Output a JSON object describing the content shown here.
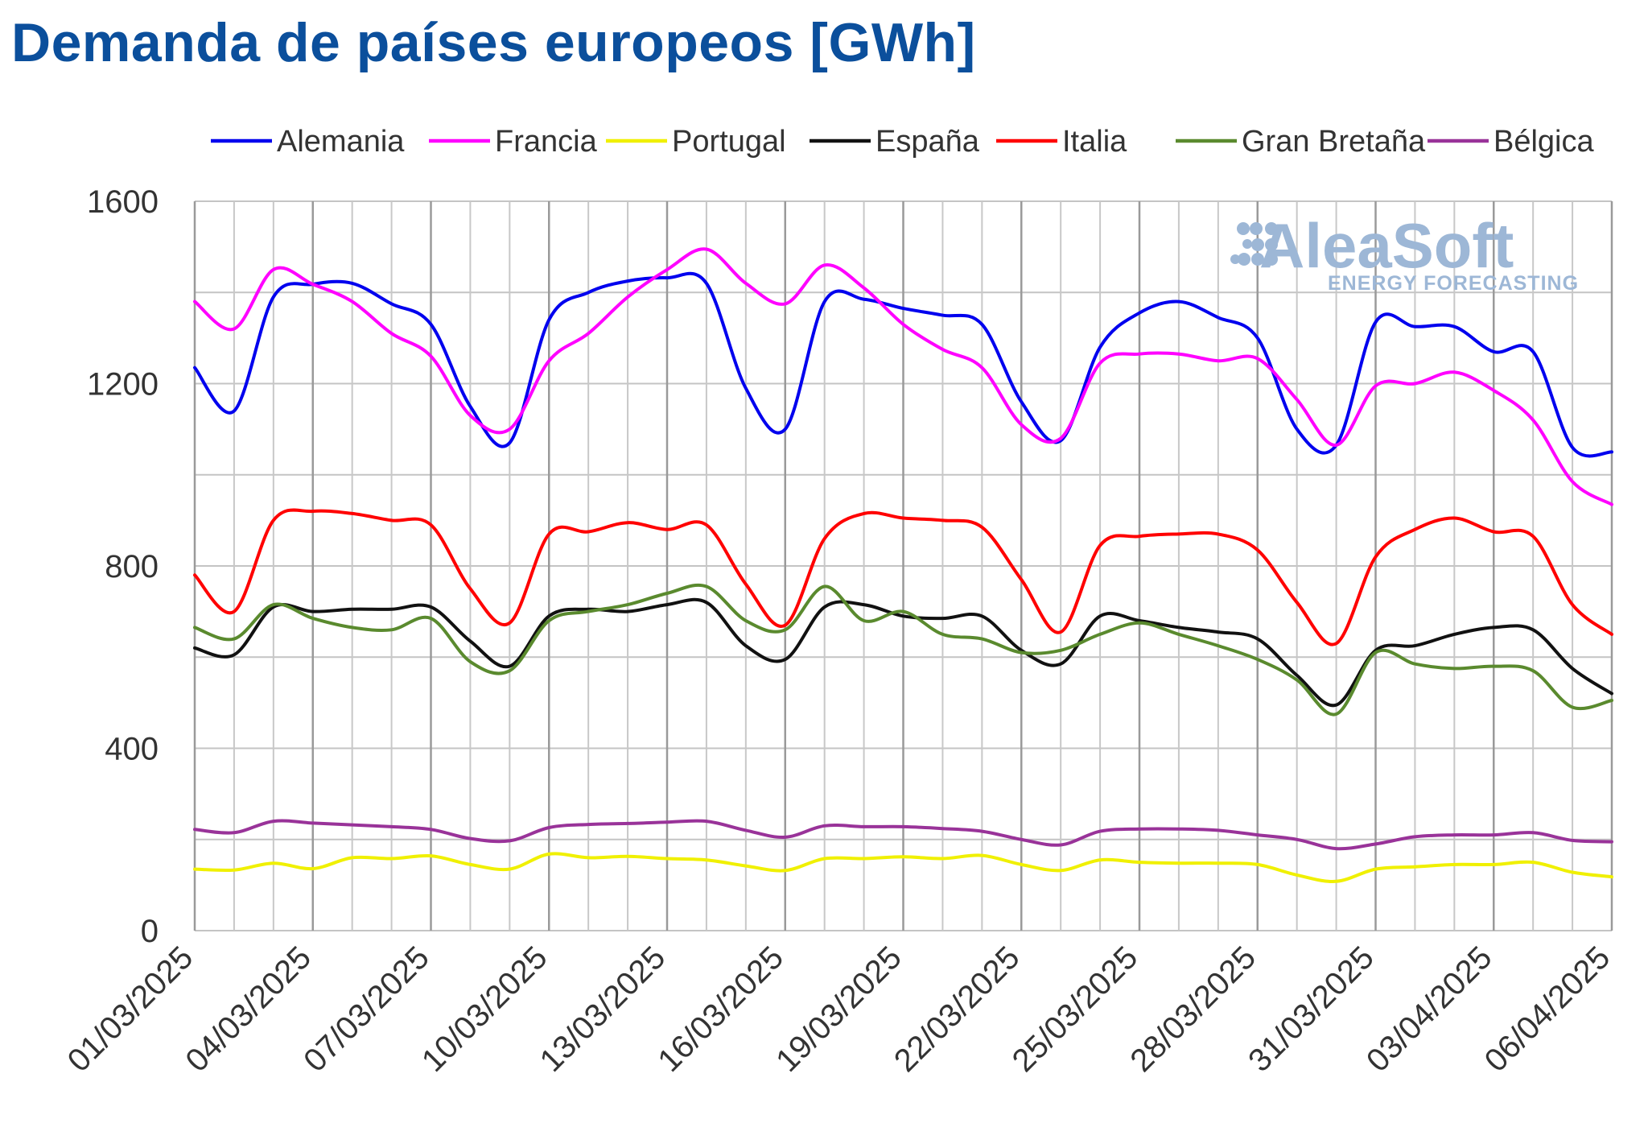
{
  "title": "Demanda de países europeos [GWh]",
  "watermark": {
    "brand": "AleaSoft",
    "tagline": "ENERGY FORECASTING"
  },
  "chart_data": {
    "type": "line",
    "y_ticks": [
      "0",
      "400",
      "800",
      "1200",
      "1600"
    ],
    "ylim": [
      0,
      1600
    ],
    "grid": true,
    "legend_position": "top",
    "x": [
      "01/03/2025",
      "02/03/2025",
      "03/03/2025",
      "04/03/2025",
      "05/03/2025",
      "06/03/2025",
      "07/03/2025",
      "08/03/2025",
      "09/03/2025",
      "10/03/2025",
      "11/03/2025",
      "12/03/2025",
      "13/03/2025",
      "14/03/2025",
      "15/03/2025",
      "16/03/2025",
      "17/03/2025",
      "18/03/2025",
      "19/03/2025",
      "20/03/2025",
      "21/03/2025",
      "22/03/2025",
      "23/03/2025",
      "24/03/2025",
      "25/03/2025",
      "26/03/2025",
      "27/03/2025",
      "28/03/2025",
      "29/03/2025",
      "30/03/2025",
      "31/03/2025",
      "01/04/2025",
      "02/04/2025",
      "03/04/2025",
      "04/04/2025",
      "05/04/2025",
      "06/04/2025"
    ],
    "x_tick_labels": [
      "01/03/2025",
      "04/03/2025",
      "07/03/2025",
      "10/03/2025",
      "13/03/2025",
      "16/03/2025",
      "19/03/2025",
      "22/03/2025",
      "25/03/2025",
      "28/03/2025",
      "31/03/2025",
      "03/04/2025",
      "06/04/2025"
    ],
    "series": [
      {
        "name": "Alemania",
        "color": "#0000ee",
        "values": [
          1235,
          1140,
          1390,
          1418,
          1420,
          1375,
          1330,
          1150,
          1070,
          1340,
          1400,
          1425,
          1432,
          1420,
          1190,
          1100,
          1380,
          1385,
          1365,
          1350,
          1330,
          1160,
          1075,
          1280,
          1355,
          1380,
          1345,
          1300,
          1100,
          1065,
          1335,
          1325,
          1325,
          1270,
          1270,
          1060,
          1050
        ]
      },
      {
        "name": "Francia",
        "color": "#ff00ff",
        "values": [
          1380,
          1320,
          1450,
          1418,
          1380,
          1310,
          1260,
          1130,
          1100,
          1250,
          1310,
          1390,
          1450,
          1495,
          1420,
          1375,
          1460,
          1410,
          1330,
          1275,
          1235,
          1110,
          1080,
          1245,
          1265,
          1265,
          1250,
          1255,
          1165,
          1065,
          1195,
          1200,
          1225,
          1185,
          1120,
          985,
          935
        ]
      },
      {
        "name": "Portugal",
        "color": "#f0f000",
        "values": [
          135,
          133,
          148,
          136,
          160,
          158,
          164,
          145,
          135,
          168,
          160,
          163,
          158,
          155,
          142,
          132,
          158,
          158,
          162,
          158,
          165,
          145,
          132,
          155,
          150,
          148,
          148,
          145,
          122,
          108,
          135,
          140,
          145,
          145,
          150,
          128,
          118
        ]
      },
      {
        "name": "España",
        "color": "#111111",
        "values": [
          620,
          605,
          710,
          700,
          705,
          705,
          710,
          635,
          580,
          690,
          705,
          700,
          715,
          720,
          625,
          595,
          710,
          715,
          690,
          685,
          690,
          615,
          585,
          690,
          680,
          665,
          655,
          640,
          560,
          495,
          615,
          625,
          650,
          665,
          660,
          575,
          520
        ]
      },
      {
        "name": "Italia",
        "color": "#ff0000",
        "values": [
          780,
          700,
          900,
          920,
          915,
          900,
          890,
          750,
          675,
          870,
          875,
          895,
          880,
          890,
          760,
          670,
          860,
          915,
          905,
          900,
          885,
          770,
          655,
          845,
          865,
          870,
          870,
          835,
          720,
          630,
          820,
          880,
          905,
          875,
          865,
          715,
          650
        ]
      },
      {
        "name": "Gran Bretaña",
        "color": "#5a8a2e",
        "values": [
          665,
          640,
          715,
          685,
          665,
          660,
          685,
          590,
          570,
          680,
          700,
          715,
          740,
          755,
          680,
          660,
          755,
          680,
          700,
          650,
          640,
          610,
          615,
          650,
          675,
          650,
          625,
          595,
          550,
          475,
          610,
          585,
          575,
          580,
          570,
          490,
          505
        ]
      },
      {
        "name": "Bélgica",
        "color": "#993399",
        "values": [
          222,
          215,
          240,
          236,
          232,
          228,
          222,
          202,
          197,
          226,
          233,
          235,
          238,
          240,
          220,
          205,
          230,
          228,
          228,
          224,
          218,
          200,
          188,
          218,
          223,
          223,
          220,
          210,
          200,
          180,
          190,
          206,
          210,
          210,
          215,
          198,
          195
        ]
      }
    ]
  }
}
